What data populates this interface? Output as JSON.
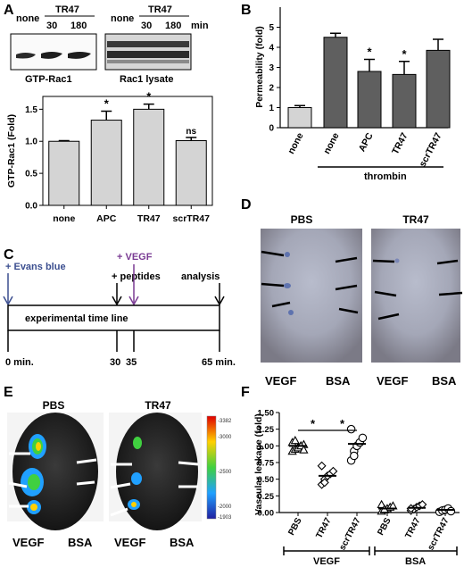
{
  "panels": {
    "A": {
      "letter": "A",
      "blot_headers": {
        "none": "none",
        "tr47": "TR47",
        "t30": "30",
        "t180": "180",
        "min": "min"
      },
      "blot_captions": {
        "gtp": "GTP-Rac1",
        "lysate": "Rac1 lysate"
      },
      "ylabel": "GTP-Rac1 (Fold)",
      "significance": [
        "*",
        "*",
        "ns"
      ]
    },
    "B": {
      "letter": "B",
      "ylabel": "Permeability (fold)",
      "group_label": "thrombin",
      "significance": [
        "*",
        "*"
      ]
    },
    "C": {
      "letter": "C",
      "events": {
        "evans": "+ Evans blue",
        "vegf": "+ VEGF",
        "peptides": "+ peptides",
        "analysis": "analysis"
      },
      "timeline_label": "experimental time line",
      "ticks": {
        "t0": "0 min.",
        "t30": "30",
        "t35": "35",
        "t65": "65 min."
      }
    },
    "D": {
      "letter": "D",
      "titles": {
        "pbs": "PBS",
        "tr47": "TR47"
      },
      "bottom": {
        "vegf1": "VEGF",
        "bsa1": "BSA",
        "vegf2": "VEGF",
        "bsa2": "BSA"
      }
    },
    "E": {
      "letter": "E",
      "titles": {
        "pbs": "PBS",
        "tr47": "TR47"
      },
      "bottom": {
        "vegf1": "VEGF",
        "bsa1": "BSA",
        "vegf2": "VEGF",
        "bsa2": "BSA"
      },
      "colorbar_ticks": [
        "-3382",
        "-3000",
        "-2500",
        "-2000",
        "-1903"
      ]
    },
    "F": {
      "letter": "F",
      "ylabel": "Vascular leakage (fold)",
      "group_labels": {
        "vegf": "VEGF",
        "bsa": "BSA"
      },
      "significance": [
        "*",
        "*"
      ]
    }
  },
  "colors": {
    "bar_fill_A": "#d4d4d4",
    "bar_dark_B": "#5f5f5f",
    "evans_blue": "#3b4e8f",
    "vegf_purple": "#7a3b93"
  },
  "chart_data": [
    {
      "id": "A",
      "type": "bar",
      "categories": [
        "none",
        "APC",
        "TR47",
        "scrTR47"
      ],
      "values": [
        1.0,
        1.33,
        1.5,
        1.01
      ],
      "errors": [
        0.01,
        0.14,
        0.08,
        0.05
      ],
      "ylabel": "GTP-Rac1 (Fold)",
      "yticks": [
        "0.0",
        "0.5",
        "1.0",
        "1.5"
      ],
      "ylim": [
        0,
        1.7
      ]
    },
    {
      "id": "B",
      "type": "bar",
      "categories": [
        "none",
        "none",
        "APC",
        "TR47",
        "scrTR47"
      ],
      "values": [
        1.0,
        4.5,
        2.8,
        2.65,
        3.85
      ],
      "errors": [
        0.1,
        0.2,
        0.6,
        0.65,
        0.55
      ],
      "ylabel": "Permeability (fold)",
      "yticks": [
        "0",
        "1",
        "2",
        "3",
        "4",
        "5"
      ],
      "ylim": [
        0,
        6
      ]
    },
    {
      "id": "F",
      "type": "scatter",
      "categories": [
        "PBS",
        "TR47",
        "scrTR47",
        "PBS",
        "TR47",
        "scrTR47"
      ],
      "markers": [
        "triangle",
        "diamond",
        "circle",
        "triangle",
        "diamond",
        "circle"
      ],
      "points": [
        [
          0.92,
          0.95,
          0.98,
          1.0,
          1.02,
          1.05,
          1.08,
          0.97,
          1.0,
          0.94
        ],
        [
          0.42,
          0.5,
          0.55,
          0.58,
          0.62,
          0.7,
          0.45
        ],
        [
          0.78,
          0.92,
          1.0,
          1.05,
          1.12,
          1.25,
          0.85
        ],
        [
          0.02,
          0.04,
          0.06,
          0.08,
          0.1,
          0.12,
          0.05
        ],
        [
          0.03,
          0.05,
          0.08,
          0.1,
          0.12,
          0.06
        ],
        [
          0.01,
          0.03,
          0.04,
          0.06,
          0.02
        ]
      ],
      "means": [
        1.0,
        0.55,
        1.03,
        0.06,
        0.07,
        0.04
      ],
      "ylabel": "Vascular leakage (fold)",
      "yticks": [
        "0.00",
        "0.25",
        "0.50",
        "0.75",
        "1.00",
        "1.25",
        "1.50"
      ],
      "ylim": [
        0,
        1.5
      ]
    }
  ]
}
